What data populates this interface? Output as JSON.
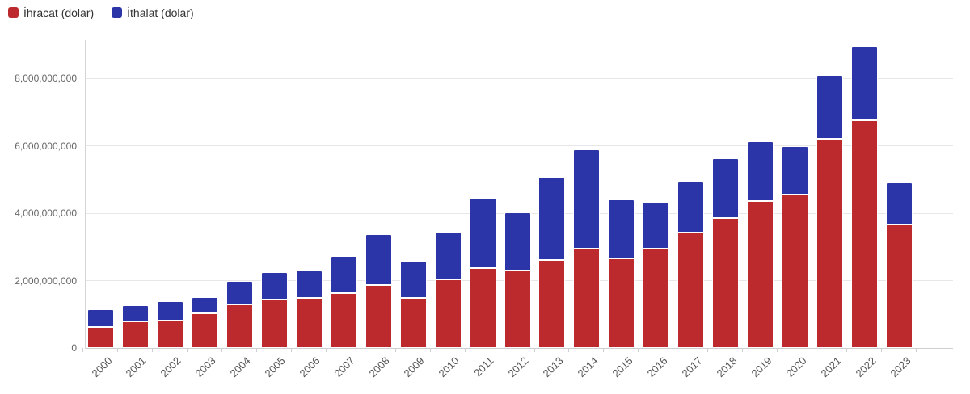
{
  "legend": {
    "items": [
      {
        "label": "İhracat (dolar)",
        "color": "#bc2a2e"
      },
      {
        "label": "İthalat (dolar)",
        "color": "#2c35a7"
      }
    ]
  },
  "chart_data": {
    "type": "bar",
    "stacked": true,
    "title": "",
    "xlabel": "",
    "ylabel": "",
    "grid": true,
    "legend_position": "top-left",
    "ylim": [
      0,
      9100000000
    ],
    "yticks": [
      {
        "value": 0,
        "label": "0"
      },
      {
        "value": 2000000000,
        "label": "2,000,000,000"
      },
      {
        "value": 4000000000,
        "label": "4,000,000,000"
      },
      {
        "value": 6000000000,
        "label": "6,000,000,000"
      },
      {
        "value": 8000000000,
        "label": "8,000,000,000"
      }
    ],
    "categories": [
      "2000",
      "2001",
      "2002",
      "2003",
      "2004",
      "2005",
      "2006",
      "2007",
      "2008",
      "2009",
      "2010",
      "2011",
      "2012",
      "2013",
      "2014",
      "2015",
      "2016",
      "2017",
      "2018",
      "2019",
      "2020",
      "2021",
      "2022",
      "2023"
    ],
    "series": [
      {
        "name": "İhracat (dolar)",
        "key": "ihracat",
        "color": "#bc2a2e",
        "values": [
          630000000,
          780000000,
          820000000,
          1020000000,
          1290000000,
          1440000000,
          1480000000,
          1620000000,
          1880000000,
          1480000000,
          2040000000,
          2380000000,
          2300000000,
          2620000000,
          2940000000,
          2660000000,
          2960000000,
          3420000000,
          3860000000,
          4360000000,
          4560000000,
          6200000000,
          6770000000,
          3670000000
        ]
      },
      {
        "name": "İthalat (dolar)",
        "key": "ithalat",
        "color": "#2c35a7",
        "values": [
          520000000,
          500000000,
          560000000,
          500000000,
          690000000,
          810000000,
          820000000,
          1110000000,
          1500000000,
          1100000000,
          1410000000,
          2080000000,
          1740000000,
          2470000000,
          2950000000,
          1750000000,
          1380000000,
          1510000000,
          1780000000,
          1780000000,
          1440000000,
          1900000000,
          2200000000,
          1250000000
        ]
      }
    ]
  },
  "layout_colors": {
    "background": "#ffffff",
    "gridline": "#e7e7e7",
    "axis_line": "#cfcfcf",
    "ytick_text": "#666666",
    "xtick_text": "#555555",
    "legend_text": "#333333"
  }
}
